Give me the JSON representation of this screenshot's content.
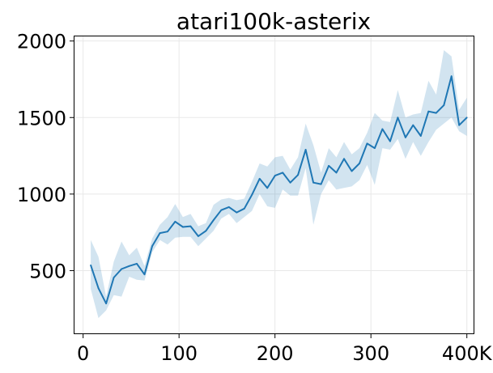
{
  "chart_data": {
    "type": "line",
    "title": "atari100k-asterix",
    "xlabel": "",
    "ylabel": "",
    "xlim": [
      -9,
      407
    ],
    "ylim": [
      90,
      2030
    ],
    "grid": true,
    "x_ticks": [
      {
        "value": 0,
        "label": "0"
      },
      {
        "value": 100,
        "label": "100"
      },
      {
        "value": 200,
        "label": "200"
      },
      {
        "value": 300,
        "label": "300"
      },
      {
        "value": 400,
        "label": "400K"
      }
    ],
    "y_ticks": [
      {
        "value": 500,
        "label": "500"
      },
      {
        "value": 1000,
        "label": "1000"
      },
      {
        "value": 1500,
        "label": "1500"
      },
      {
        "value": 2000,
        "label": "2000"
      }
    ],
    "line_color": "#1f77b4",
    "band_color": "#1f77b4",
    "series": [
      {
        "x": [
          8,
          16,
          24,
          32,
          40,
          48,
          56,
          64,
          72,
          80,
          88,
          96,
          104,
          112,
          120,
          128,
          136,
          144,
          152,
          160,
          168,
          176,
          184,
          192,
          200,
          208,
          216,
          224,
          232,
          240,
          248,
          256,
          264,
          272,
          280,
          288,
          296,
          304,
          312,
          320,
          328,
          336,
          344,
          352,
          360,
          368,
          376,
          384,
          392,
          400
        ],
        "y": [
          535,
          385,
          285,
          455,
          510,
          530,
          545,
          475,
          660,
          745,
          755,
          820,
          785,
          790,
          725,
          760,
          830,
          895,
          915,
          880,
          905,
          995,
          1100,
          1040,
          1120,
          1140,
          1075,
          1125,
          1290,
          1075,
          1065,
          1185,
          1140,
          1230,
          1150,
          1200,
          1330,
          1300,
          1425,
          1345,
          1500,
          1370,
          1450,
          1380,
          1540,
          1530,
          1580,
          1770,
          1450,
          1500
        ],
        "lower": [
          380,
          190,
          240,
          340,
          330,
          460,
          440,
          435,
          620,
          700,
          670,
          715,
          720,
          720,
          660,
          710,
          760,
          840,
          870,
          810,
          850,
          890,
          1000,
          920,
          910,
          1030,
          990,
          990,
          1170,
          800,
          1000,
          1090,
          1030,
          1040,
          1050,
          1090,
          1190,
          1060,
          1300,
          1290,
          1360,
          1230,
          1340,
          1250,
          1340,
          1420,
          1460,
          1500,
          1410,
          1380
        ],
        "upper": [
          700,
          590,
          330,
          560,
          690,
          600,
          650,
          530,
          710,
          800,
          850,
          935,
          850,
          870,
          790,
          810,
          930,
          965,
          975,
          960,
          970,
          1080,
          1200,
          1180,
          1240,
          1250,
          1160,
          1240,
          1460,
          1320,
          1140,
          1300,
          1240,
          1340,
          1260,
          1300,
          1400,
          1530,
          1480,
          1470,
          1680,
          1500,
          1520,
          1530,
          1740,
          1650,
          1940,
          1900,
          1550,
          1630
        ]
      }
    ]
  }
}
